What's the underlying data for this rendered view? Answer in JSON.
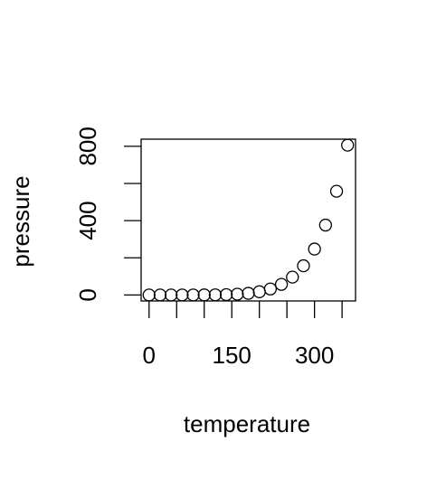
{
  "chart_data": {
    "type": "scatter",
    "x_label": "temperature",
    "y_label": "pressure",
    "x": [
      0,
      20,
      40,
      60,
      80,
      100,
      120,
      140,
      160,
      180,
      200,
      220,
      240,
      260,
      280,
      300,
      320,
      340,
      360
    ],
    "values": [
      0.0002,
      0.0012,
      0.006,
      0.03,
      0.09,
      0.27,
      0.75,
      1.85,
      4.2,
      8.8,
      17.3,
      32.1,
      57,
      96,
      157,
      247,
      376,
      558,
      806
    ],
    "color": "#000000",
    "xlim": [
      -14.4,
      374.4
    ],
    "xticks": [
      0,
      {
        "value": 50,
        "label": null
      },
      {
        "value": 100,
        "label": null
      },
      150,
      {
        "value": 200,
        "label": null
      },
      {
        "value": 250,
        "label": null
      },
      300,
      {
        "value": 350,
        "label": null
      }
    ],
    "ylim": [
      -32.24,
      838.24
    ],
    "yticks": [
      0,
      {
        "value": 200,
        "label": null
      },
      400,
      {
        "value": 600,
        "label": null
      },
      800
    ],
    "grid": false
  }
}
